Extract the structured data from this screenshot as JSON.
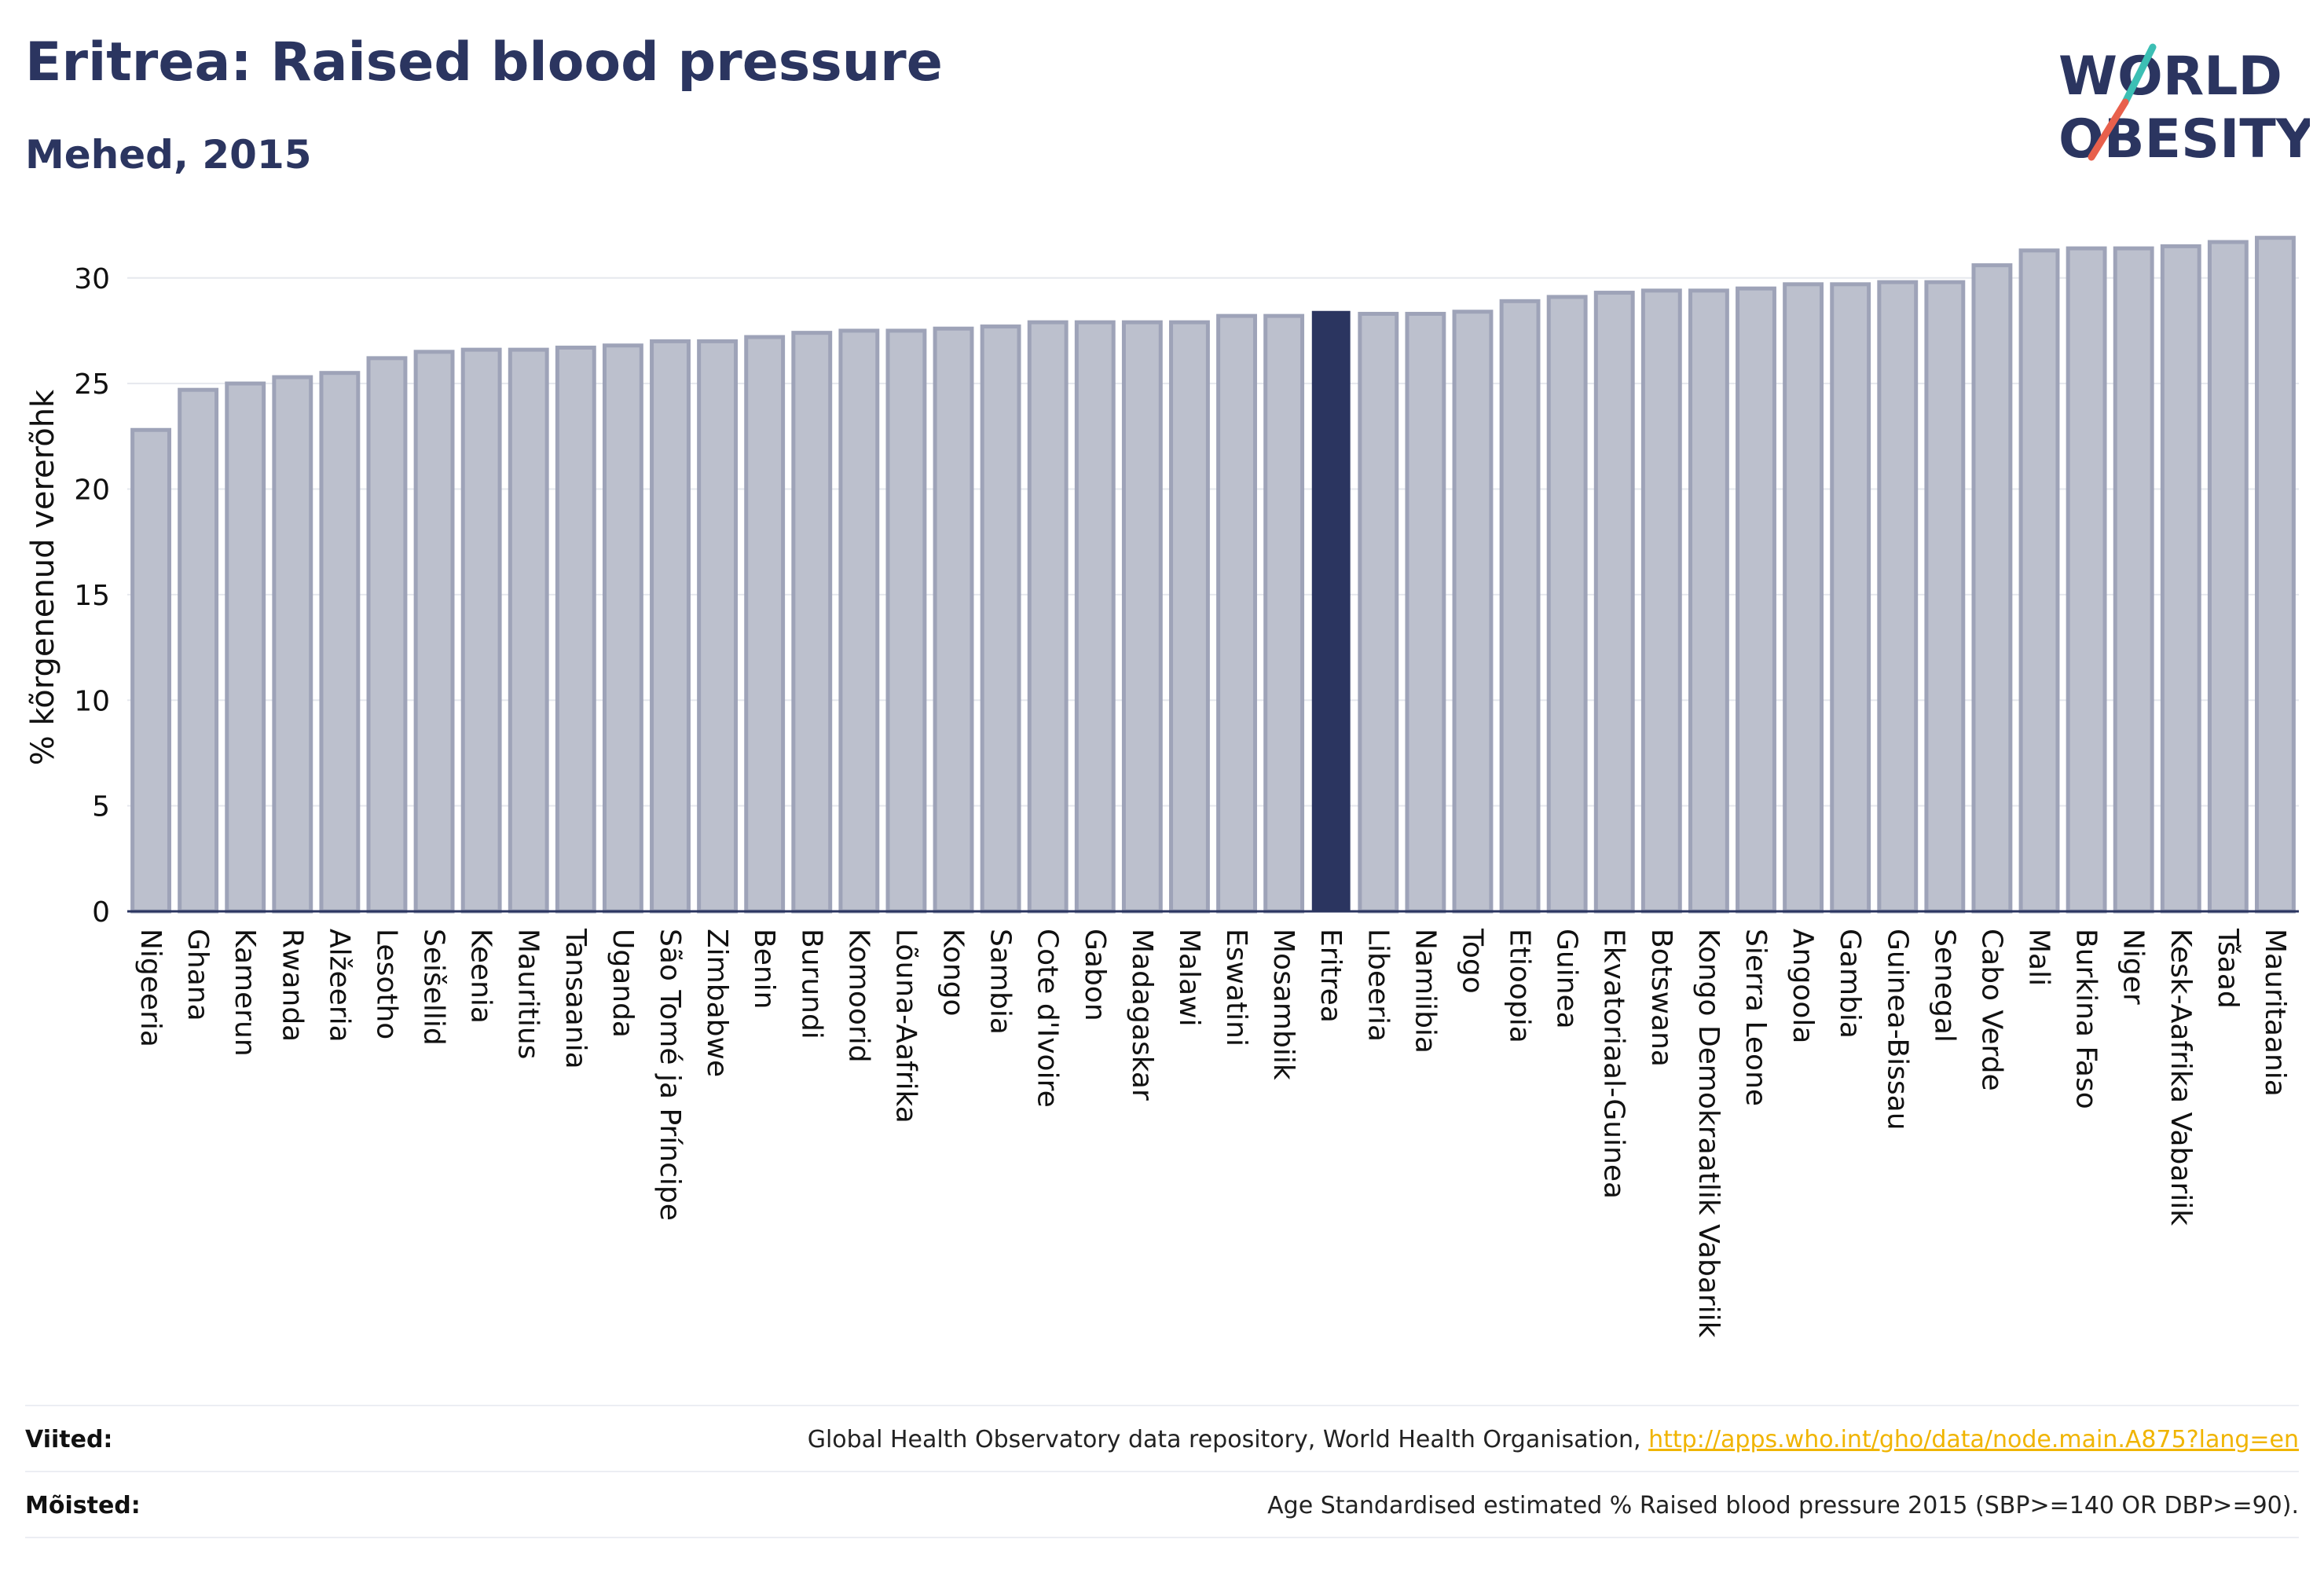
{
  "header": {
    "title": "Eritrea: Raised blood pressure",
    "subtitle": "Mehed, 2015"
  },
  "logo": {
    "line1": "WORLD",
    "line2": "OBESITY",
    "colors": {
      "text": "#2b3560",
      "slash_red": "#e8604c",
      "slash_teal": "#3cbfb4"
    }
  },
  "footer": {
    "sources_label": "Viited:",
    "sources_text": "Global Health Observatory data repository, World Health Organisation,",
    "sources_link": "http://apps.who.int/gho/data/node.main.A875?lang=en",
    "definitions_label": "Mõisted:",
    "definitions_text": "Age Standardised estimated % Raised blood pressure 2015 (SBP>=140 OR DBP>=90)."
  },
  "chart_data": {
    "type": "bar",
    "title": "Eritrea: Raised blood pressure",
    "subtitle": "Mehed, 2015",
    "xlabel": "",
    "ylabel": "% kõrgenenud vererõhk",
    "ylim": [
      0,
      32
    ],
    "yticks": [
      0,
      5,
      10,
      15,
      20,
      25,
      30
    ],
    "grid": true,
    "highlight": "Eritrea",
    "colors": {
      "bar": "#bcc0cd",
      "bar_border": "#9ea3b8",
      "highlight": "#2b3560",
      "grid": "#e6e8ee",
      "axis": "#2b3560"
    },
    "categories": [
      "Nigeeria",
      "Ghana",
      "Kamerun",
      "Rwanda",
      "Alžeeria",
      "Lesotho",
      "Seišellid",
      "Keenia",
      "Mauritius",
      "Tansaania",
      "Uganda",
      "São Tomé ja Príncipe",
      "Zimbabwe",
      "Benin",
      "Burundi",
      "Komoorid",
      "Lõuna-Aafrika",
      "Kongo",
      "Sambia",
      "Cote d'Ivoire",
      "Gabon",
      "Madagaskar",
      "Malawi",
      "Eswatini",
      "Mosambiik",
      "Eritrea",
      "Libeeria",
      "Namiibia",
      "Togo",
      "Etioopia",
      "Guinea",
      "Ekvatoriaal-Guinea",
      "Botswana",
      "Kongo Demokraatlik Vabariik",
      "Sierra Leone",
      "Angoola",
      "Gambia",
      "Guinea-Bissau",
      "Senegal",
      "Cabo Verde",
      "Mali",
      "Burkina Faso",
      "Niger",
      "Kesk-Aafrika Vabariik",
      "Tšaad",
      "Mauritaania"
    ],
    "values": [
      22.8,
      24.7,
      25.0,
      25.3,
      25.5,
      26.2,
      26.5,
      26.6,
      26.6,
      26.7,
      26.8,
      27.0,
      27.0,
      27.2,
      27.4,
      27.5,
      27.5,
      27.6,
      27.7,
      27.9,
      27.9,
      27.9,
      27.9,
      28.2,
      28.2,
      28.4,
      28.3,
      28.3,
      28.4,
      28.9,
      29.1,
      29.3,
      29.4,
      29.4,
      29.5,
      29.7,
      29.7,
      29.8,
      29.8,
      30.6,
      31.3,
      31.4,
      31.4,
      31.5,
      31.7,
      31.9
    ]
  }
}
